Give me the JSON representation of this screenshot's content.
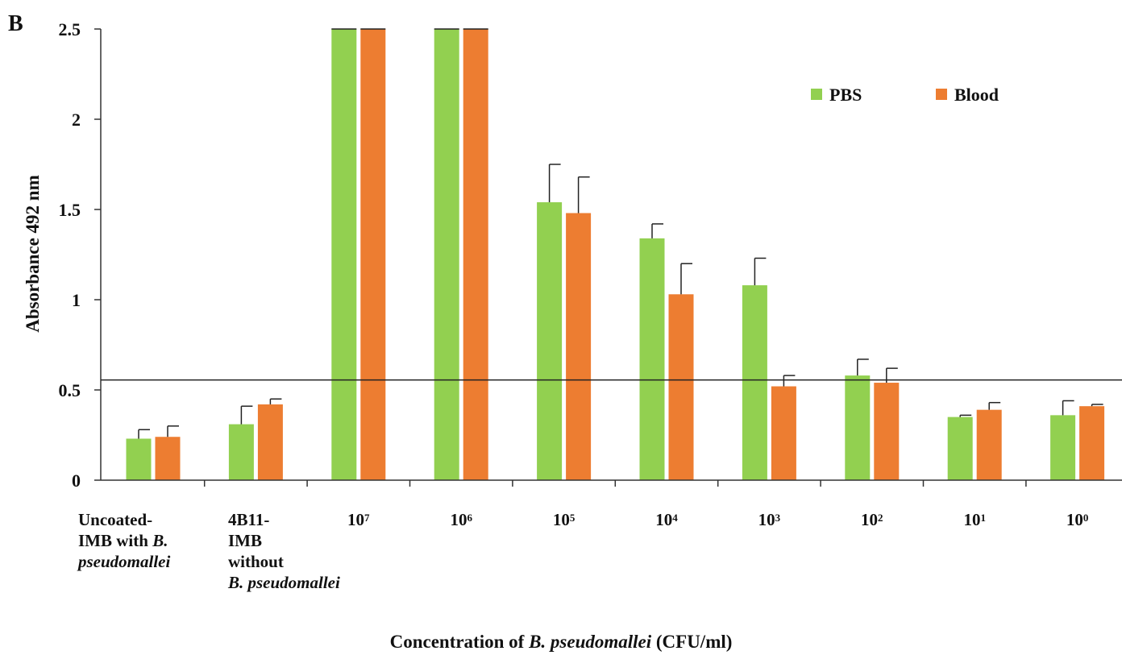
{
  "panel_label": "B",
  "chart_data": {
    "type": "bar",
    "title": "",
    "xlabel": {
      "prefix": "Concentration of ",
      "italic": "B. pseudomallei",
      "suffix": " (CFU/ml)"
    },
    "ylabel": "Absorbance 492 nm",
    "ylim": [
      0,
      2.5
    ],
    "yticks": [
      "0",
      "0.5",
      "1",
      "1.5",
      "2",
      "2.5"
    ],
    "grid": false,
    "legend_position": "top-right",
    "threshold_line": 0.555,
    "categories": [
      {
        "lines": [
          "Uncoated-",
          "IMB with <i>B.</i>",
          "<i>pseudomallei</i>"
        ]
      },
      {
        "lines": [
          "4B11-",
          "IMB",
          "without",
          "<i>B. pseudomallei</i>"
        ]
      },
      {
        "base": "10",
        "exp": "7"
      },
      {
        "base": "10",
        "exp": "6"
      },
      {
        "base": "10",
        "exp": "5"
      },
      {
        "base": "10",
        "exp": "4"
      },
      {
        "base": "10",
        "exp": "3"
      },
      {
        "base": "10",
        "exp": "2"
      },
      {
        "base": "10",
        "exp": "1"
      },
      {
        "base": "10",
        "exp": "0"
      }
    ],
    "series": [
      {
        "name": "PBS",
        "color": "#92d050",
        "values": [
          0.23,
          0.31,
          2.5,
          2.5,
          1.54,
          1.34,
          1.08,
          0.58,
          0.35,
          0.36
        ],
        "errors": [
          0.05,
          0.1,
          0,
          0,
          0.21,
          0.08,
          0.15,
          0.09,
          0.01,
          0.08
        ]
      },
      {
        "name": "Blood",
        "color": "#ed7d31",
        "values": [
          0.24,
          0.42,
          2.5,
          2.5,
          1.48,
          1.03,
          0.52,
          0.54,
          0.39,
          0.41
        ],
        "errors": [
          0.06,
          0.03,
          0,
          0,
          0.2,
          0.17,
          0.06,
          0.08,
          0.04,
          0.01
        ]
      }
    ]
  }
}
